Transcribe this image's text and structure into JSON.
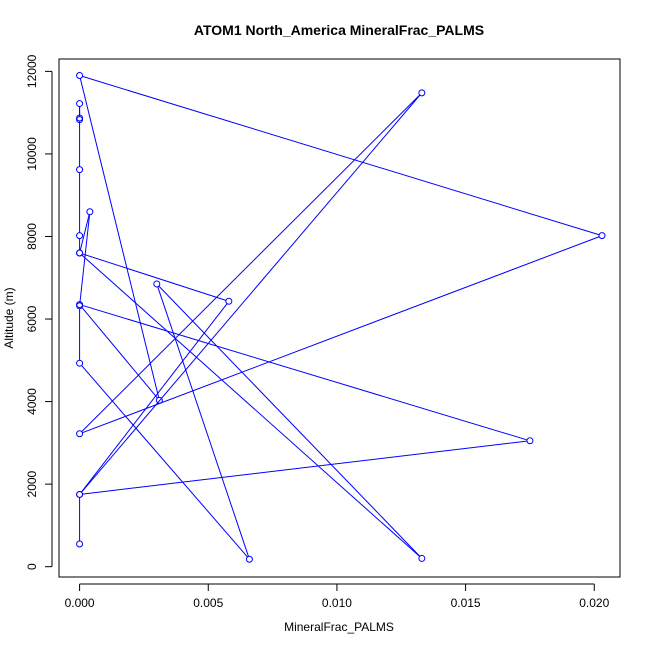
{
  "chart_data": {
    "type": "line",
    "title": "ATOM1 North_America MineralFrac_PALMS",
    "xlabel": "MineralFrac_PALMS",
    "ylabel": "Altitude (m)",
    "xlim": [
      -0.0008,
      0.021
    ],
    "ylim": [
      -250,
      12300
    ],
    "xticks": [
      0,
      0.005,
      0.01,
      0.015,
      0.02
    ],
    "xtick_labels": [
      "0.000",
      "0.005",
      "0.010",
      "0.015",
      "0.020"
    ],
    "yticks": [
      0,
      2000,
      4000,
      6000,
      8000,
      10000,
      12000
    ],
    "ytick_labels": [
      "0",
      "2000",
      "4000",
      "6000",
      "8000",
      "10000",
      "12000"
    ],
    "grid": false,
    "color": "#0000ff",
    "series": [
      {
        "marker": "open-circle",
        "points": [
          {
            "x": 0.0,
            "y": 550
          },
          {
            "x": 0.0,
            "y": 1750
          },
          {
            "x": 0.0175,
            "y": 3050
          },
          {
            "x": 0.0,
            "y": 6350
          },
          {
            "x": 0.0031,
            "y": 4030
          },
          {
            "x": 0.0,
            "y": 11900
          },
          {
            "x": 0.0203,
            "y": 8020
          },
          {
            "x": 0.0,
            "y": 3220
          },
          {
            "x": 0.0133,
            "y": 11480
          },
          {
            "x": 0.0,
            "y": 1750
          },
          {
            "x": 0.0058,
            "y": 6430
          },
          {
            "x": 0.0,
            "y": 7600
          },
          {
            "x": 0.0133,
            "y": 200
          },
          {
            "x": 0.003,
            "y": 6850
          },
          {
            "x": 0.0066,
            "y": 180
          },
          {
            "x": 0.0,
            "y": 4930
          },
          {
            "x": 0.0,
            "y": 6320
          },
          {
            "x": 0.0004,
            "y": 8600
          },
          {
            "x": 0.0,
            "y": 7600
          },
          {
            "x": 0.0,
            "y": 8020
          },
          {
            "x": 0.0,
            "y": 9620
          },
          {
            "x": 0.0,
            "y": 10870
          },
          {
            "x": 0.0,
            "y": 11220
          },
          {
            "x": 0.0,
            "y": 10830
          }
        ]
      }
    ]
  }
}
